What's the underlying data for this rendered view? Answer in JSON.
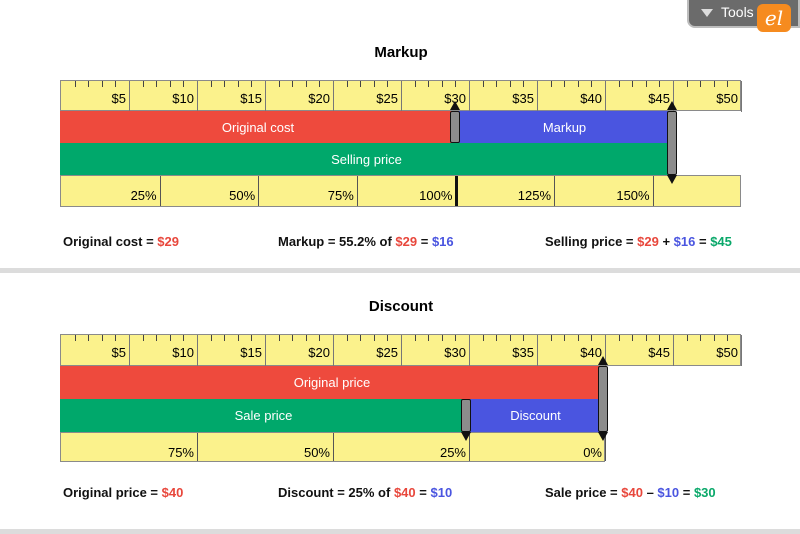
{
  "toolbar": {
    "tools_label": "Tools",
    "logo_text": "el"
  },
  "markup": {
    "title": "Markup",
    "dollar_ticks": [
      "$5",
      "$10",
      "$15",
      "$20",
      "$25",
      "$30",
      "$35",
      "$40",
      "$45",
      "$50"
    ],
    "percent_ticks": [
      "25%",
      "50%",
      "75%",
      "100%",
      "125%",
      "150%"
    ],
    "bars": {
      "original_cost": "Original cost",
      "markup": "Markup",
      "selling_price": "Selling price"
    },
    "original_cost_value": 29,
    "markup_value": 16,
    "selling_price_value": 45,
    "eq_original": {
      "label": "Original cost = ",
      "value": "$29"
    },
    "eq_markup": {
      "label": "Markup = 55.2% of ",
      "base": "$29",
      "mid": " = ",
      "value": "$16"
    },
    "eq_selling": {
      "label": "Selling price = ",
      "a": "$29",
      "op": " + ",
      "b": "$16",
      "eq": " = ",
      "c": "$45"
    }
  },
  "discount": {
    "title": "Discount",
    "dollar_ticks": [
      "$5",
      "$10",
      "$15",
      "$20",
      "$25",
      "$30",
      "$35",
      "$40",
      "$45",
      "$50"
    ],
    "percent_ticks": [
      "75%",
      "50%",
      "25%",
      "0%"
    ],
    "bars": {
      "original_price": "Original price",
      "sale_price": "Sale price",
      "discount": "Discount"
    },
    "original_price_value": 40,
    "discount_value": 10,
    "sale_price_value": 30,
    "eq_original": {
      "label": "Original price = ",
      "value": "$40"
    },
    "eq_discount": {
      "label": "Discount = 25% of ",
      "base": "$40",
      "mid": " = ",
      "value": "$10"
    },
    "eq_sale": {
      "label": "Sale price = ",
      "a": "$40",
      "op": " – ",
      "b": "$10",
      "eq": " = ",
      "c": "$30"
    }
  },
  "colors": {
    "red": "#e8473c",
    "blue": "#4a55e0",
    "green": "#0aa86a",
    "ruler": "#fbf28c"
  }
}
